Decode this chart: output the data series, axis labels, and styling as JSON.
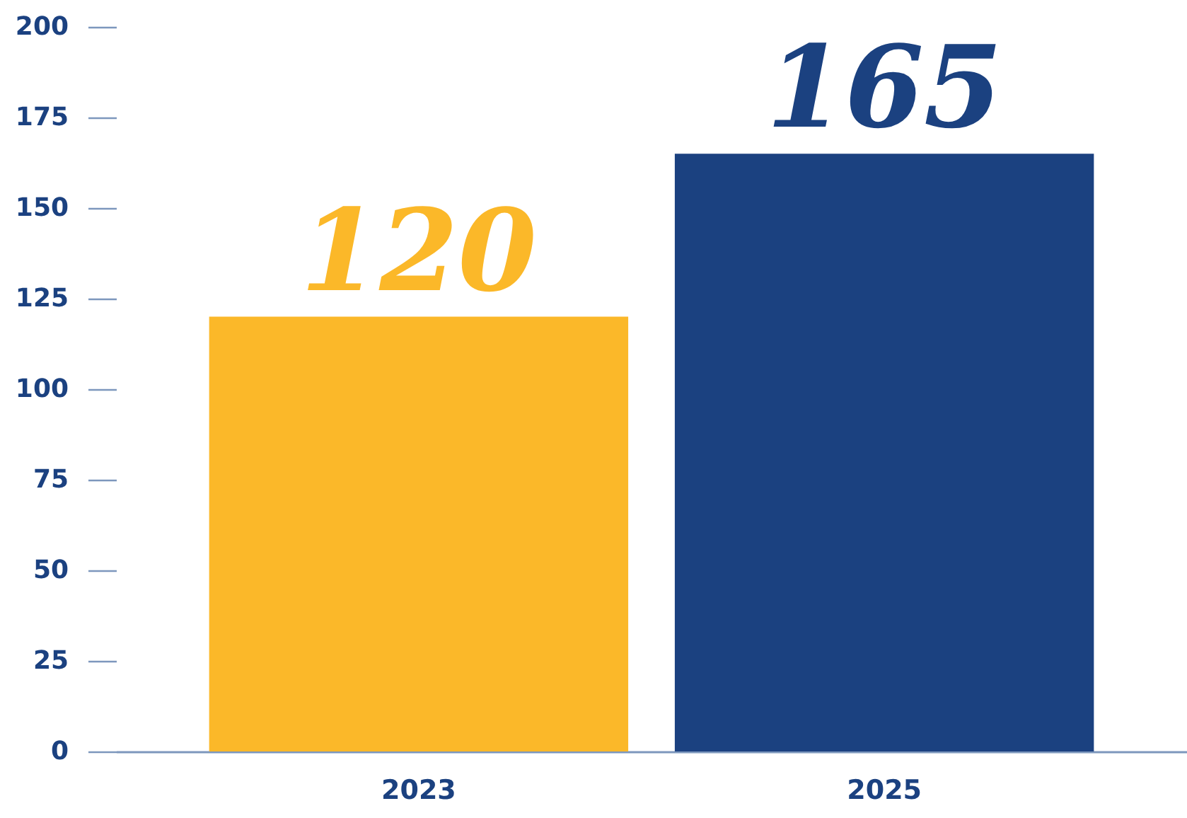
{
  "chart_data": {
    "type": "bar",
    "categories": [
      "2023",
      "2025"
    ],
    "values": [
      120,
      165
    ],
    "colors": [
      "#fbb829",
      "#1b4180"
    ],
    "ylim": [
      0,
      200
    ],
    "yticks": [
      0,
      25,
      50,
      75,
      100,
      125,
      150,
      175,
      200
    ],
    "data_labels": true,
    "grid": false
  }
}
